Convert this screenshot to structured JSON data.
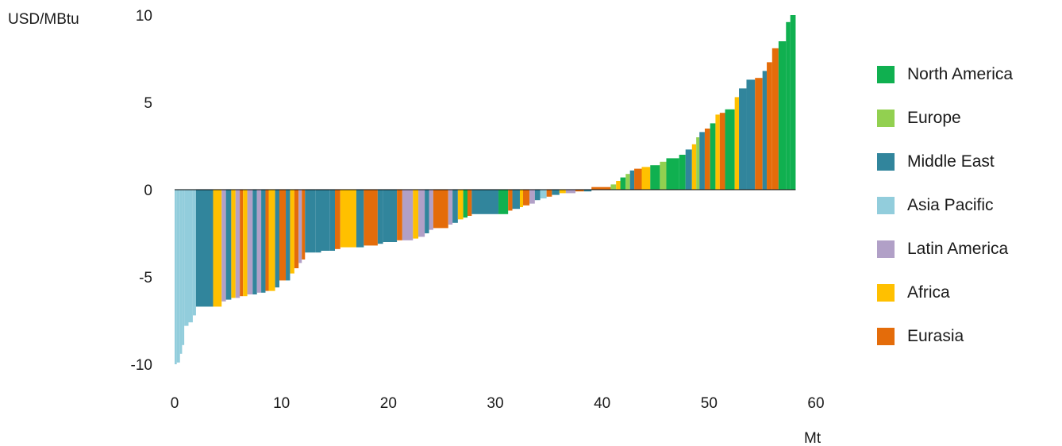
{
  "chart_data": {
    "type": "bar",
    "ylabel": "USD/MBtu",
    "xlabel": "Mt",
    "xlim": [
      0,
      60
    ],
    "ylim": [
      -10,
      10
    ],
    "xticks": [
      "0",
      "10",
      "20",
      "30",
      "40",
      "50",
      "60"
    ],
    "yticks": [
      "10",
      "5",
      "0",
      "-5",
      "-10"
    ],
    "grid": false,
    "legend_position": "right",
    "series": [
      {
        "name": "North America",
        "color": "#10b050"
      },
      {
        "name": "Europe",
        "color": "#92d050"
      },
      {
        "name": "Middle East",
        "color": "#31859c"
      },
      {
        "name": "Asia Pacific",
        "color": "#92cddc"
      },
      {
        "name": "Latin America",
        "color": "#b1a0c7"
      },
      {
        "name": "Africa",
        "color": "#ffc000"
      },
      {
        "name": "Eurasia",
        "color": "#e46c0a"
      }
    ],
    "bars": [
      {
        "x0": 0.0,
        "x1": 0.2,
        "value": -10.0,
        "region": "Asia Pacific"
      },
      {
        "x0": 0.2,
        "x1": 0.5,
        "value": -9.9,
        "region": "Asia Pacific"
      },
      {
        "x0": 0.5,
        "x1": 0.7,
        "value": -9.4,
        "region": "Asia Pacific"
      },
      {
        "x0": 0.7,
        "x1": 0.9,
        "value": -8.9,
        "region": "Asia Pacific"
      },
      {
        "x0": 0.9,
        "x1": 1.3,
        "value": -7.8,
        "region": "Asia Pacific"
      },
      {
        "x0": 1.3,
        "x1": 1.7,
        "value": -7.6,
        "region": "Asia Pacific"
      },
      {
        "x0": 1.7,
        "x1": 2.0,
        "value": -7.2,
        "region": "Asia Pacific"
      },
      {
        "x0": 2.0,
        "x1": 3.6,
        "value": -6.7,
        "region": "Middle East"
      },
      {
        "x0": 3.6,
        "x1": 4.4,
        "value": -6.7,
        "region": "Africa"
      },
      {
        "x0": 4.4,
        "x1": 4.8,
        "value": -6.4,
        "region": "Latin America"
      },
      {
        "x0": 4.8,
        "x1": 5.3,
        "value": -6.3,
        "region": "Middle East"
      },
      {
        "x0": 5.3,
        "x1": 5.7,
        "value": -6.2,
        "region": "Africa"
      },
      {
        "x0": 5.7,
        "x1": 6.1,
        "value": -6.2,
        "region": "Latin America"
      },
      {
        "x0": 6.1,
        "x1": 6.4,
        "value": -6.1,
        "region": "Eurasia"
      },
      {
        "x0": 6.4,
        "x1": 6.8,
        "value": -6.1,
        "region": "Africa"
      },
      {
        "x0": 6.8,
        "x1": 7.3,
        "value": -6.0,
        "region": "Latin America"
      },
      {
        "x0": 7.3,
        "x1": 7.7,
        "value": -6.0,
        "region": "Middle East"
      },
      {
        "x0": 7.7,
        "x1": 8.1,
        "value": -5.9,
        "region": "Latin America"
      },
      {
        "x0": 8.1,
        "x1": 8.5,
        "value": -5.9,
        "region": "Middle East"
      },
      {
        "x0": 8.5,
        "x1": 8.8,
        "value": -5.8,
        "region": "Eurasia"
      },
      {
        "x0": 8.8,
        "x1": 9.4,
        "value": -5.8,
        "region": "Africa"
      },
      {
        "x0": 9.4,
        "x1": 9.8,
        "value": -5.6,
        "region": "Middle East"
      },
      {
        "x0": 9.8,
        "x1": 10.4,
        "value": -5.2,
        "region": "Eurasia"
      },
      {
        "x0": 10.4,
        "x1": 10.8,
        "value": -5.2,
        "region": "Middle East"
      },
      {
        "x0": 10.8,
        "x1": 11.2,
        "value": -4.8,
        "region": "Africa"
      },
      {
        "x0": 11.2,
        "x1": 11.6,
        "value": -4.5,
        "region": "Eurasia"
      },
      {
        "x0": 11.6,
        "x1": 11.9,
        "value": -4.2,
        "region": "Latin America"
      },
      {
        "x0": 11.9,
        "x1": 12.2,
        "value": -4.0,
        "region": "Eurasia"
      },
      {
        "x0": 12.2,
        "x1": 13.2,
        "value": -3.6,
        "region": "Middle East"
      },
      {
        "x0": 13.2,
        "x1": 13.7,
        "value": -3.6,
        "region": "Middle East"
      },
      {
        "x0": 13.7,
        "x1": 14.5,
        "value": -3.5,
        "region": "Middle East"
      },
      {
        "x0": 14.5,
        "x1": 15.0,
        "value": -3.5,
        "region": "Middle East"
      },
      {
        "x0": 15.0,
        "x1": 15.5,
        "value": -3.4,
        "region": "Eurasia"
      },
      {
        "x0": 15.5,
        "x1": 17.0,
        "value": -3.3,
        "region": "Africa"
      },
      {
        "x0": 17.0,
        "x1": 17.7,
        "value": -3.3,
        "region": "Middle East"
      },
      {
        "x0": 17.7,
        "x1": 19.0,
        "value": -3.2,
        "region": "Eurasia"
      },
      {
        "x0": 19.0,
        "x1": 19.5,
        "value": -3.1,
        "region": "Middle East"
      },
      {
        "x0": 19.5,
        "x1": 20.8,
        "value": -3.0,
        "region": "Middle East"
      },
      {
        "x0": 20.8,
        "x1": 21.3,
        "value": -2.9,
        "region": "Eurasia"
      },
      {
        "x0": 21.3,
        "x1": 22.3,
        "value": -2.9,
        "region": "Latin America"
      },
      {
        "x0": 22.3,
        "x1": 22.8,
        "value": -2.8,
        "region": "Africa"
      },
      {
        "x0": 22.8,
        "x1": 23.4,
        "value": -2.7,
        "region": "Latin America"
      },
      {
        "x0": 23.4,
        "x1": 23.8,
        "value": -2.5,
        "region": "Middle East"
      },
      {
        "x0": 23.8,
        "x1": 24.2,
        "value": -2.3,
        "region": "Latin America"
      },
      {
        "x0": 24.2,
        "x1": 25.6,
        "value": -2.2,
        "region": "Eurasia"
      },
      {
        "x0": 25.6,
        "x1": 26.0,
        "value": -2.0,
        "region": "Latin America"
      },
      {
        "x0": 26.0,
        "x1": 26.5,
        "value": -1.9,
        "region": "Middle East"
      },
      {
        "x0": 26.5,
        "x1": 27.0,
        "value": -1.7,
        "region": "Africa"
      },
      {
        "x0": 27.0,
        "x1": 27.4,
        "value": -1.6,
        "region": "North America"
      },
      {
        "x0": 27.4,
        "x1": 27.8,
        "value": -1.5,
        "region": "Eurasia"
      },
      {
        "x0": 27.8,
        "x1": 30.3,
        "value": -1.4,
        "region": "Middle East"
      },
      {
        "x0": 30.3,
        "x1": 31.2,
        "value": -1.4,
        "region": "North America"
      },
      {
        "x0": 31.2,
        "x1": 31.6,
        "value": -1.2,
        "region": "Eurasia"
      },
      {
        "x0": 31.6,
        "x1": 32.3,
        "value": -1.1,
        "region": "Middle East"
      },
      {
        "x0": 32.3,
        "x1": 32.6,
        "value": -1.0,
        "region": "Africa"
      },
      {
        "x0": 32.6,
        "x1": 33.2,
        "value": -0.9,
        "region": "Eurasia"
      },
      {
        "x0": 33.2,
        "x1": 33.7,
        "value": -0.8,
        "region": "Latin America"
      },
      {
        "x0": 33.7,
        "x1": 34.2,
        "value": -0.6,
        "region": "Middle East"
      },
      {
        "x0": 34.2,
        "x1": 34.8,
        "value": -0.5,
        "region": "Asia Pacific"
      },
      {
        "x0": 34.8,
        "x1": 35.3,
        "value": -0.4,
        "region": "Eurasia"
      },
      {
        "x0": 35.3,
        "x1": 36.0,
        "value": -0.3,
        "region": "Middle East"
      },
      {
        "x0": 36.0,
        "x1": 36.6,
        "value": -0.2,
        "region": "Africa"
      },
      {
        "x0": 36.6,
        "x1": 37.5,
        "value": -0.2,
        "region": "Latin America"
      },
      {
        "x0": 37.5,
        "x1": 38.3,
        "value": -0.1,
        "region": "Eurasia"
      },
      {
        "x0": 38.3,
        "x1": 39.0,
        "value": -0.1,
        "region": "Middle East"
      },
      {
        "x0": 39.0,
        "x1": 40.8,
        "value": 0.15,
        "region": "Eurasia"
      },
      {
        "x0": 40.8,
        "x1": 41.3,
        "value": 0.3,
        "region": "Europe"
      },
      {
        "x0": 41.3,
        "x1": 41.7,
        "value": 0.5,
        "region": "Africa"
      },
      {
        "x0": 41.7,
        "x1": 42.2,
        "value": 0.7,
        "region": "North America"
      },
      {
        "x0": 42.2,
        "x1": 42.6,
        "value": 0.9,
        "region": "Europe"
      },
      {
        "x0": 42.6,
        "x1": 43.0,
        "value": 1.1,
        "region": "Middle East"
      },
      {
        "x0": 43.0,
        "x1": 43.7,
        "value": 1.2,
        "region": "Eurasia"
      },
      {
        "x0": 43.7,
        "x1": 44.5,
        "value": 1.3,
        "region": "Africa"
      },
      {
        "x0": 44.5,
        "x1": 45.4,
        "value": 1.4,
        "region": "North America"
      },
      {
        "x0": 45.4,
        "x1": 46.0,
        "value": 1.6,
        "region": "Europe"
      },
      {
        "x0": 46.0,
        "x1": 47.2,
        "value": 1.8,
        "region": "North America"
      },
      {
        "x0": 47.2,
        "x1": 47.8,
        "value": 2.0,
        "region": "North America"
      },
      {
        "x0": 47.8,
        "x1": 48.4,
        "value": 2.3,
        "region": "Middle East"
      },
      {
        "x0": 48.4,
        "x1": 48.8,
        "value": 2.6,
        "region": "Africa"
      },
      {
        "x0": 48.8,
        "x1": 49.1,
        "value": 3.0,
        "region": "Europe"
      },
      {
        "x0": 49.1,
        "x1": 49.6,
        "value": 3.3,
        "region": "Middle East"
      },
      {
        "x0": 49.6,
        "x1": 50.1,
        "value": 3.5,
        "region": "Eurasia"
      },
      {
        "x0": 50.1,
        "x1": 50.6,
        "value": 3.8,
        "region": "North America"
      },
      {
        "x0": 50.6,
        "x1": 51.0,
        "value": 4.3,
        "region": "Africa"
      },
      {
        "x0": 51.0,
        "x1": 51.5,
        "value": 4.4,
        "region": "Eurasia"
      },
      {
        "x0": 51.5,
        "x1": 52.4,
        "value": 4.6,
        "region": "North America"
      },
      {
        "x0": 52.4,
        "x1": 52.8,
        "value": 5.3,
        "region": "Africa"
      },
      {
        "x0": 52.8,
        "x1": 53.5,
        "value": 5.8,
        "region": "Middle East"
      },
      {
        "x0": 53.5,
        "x1": 54.3,
        "value": 6.3,
        "region": "Middle East"
      },
      {
        "x0": 54.3,
        "x1": 55.0,
        "value": 6.4,
        "region": "Eurasia"
      },
      {
        "x0": 55.0,
        "x1": 55.4,
        "value": 6.8,
        "region": "Middle East"
      },
      {
        "x0": 55.4,
        "x1": 55.9,
        "value": 7.3,
        "region": "Eurasia"
      },
      {
        "x0": 55.9,
        "x1": 56.5,
        "value": 8.1,
        "region": "Eurasia"
      },
      {
        "x0": 56.5,
        "x1": 57.2,
        "value": 8.5,
        "region": "North America"
      },
      {
        "x0": 57.2,
        "x1": 57.6,
        "value": 9.6,
        "region": "North America"
      },
      {
        "x0": 57.6,
        "x1": 58.1,
        "value": 10.0,
        "region": "North America"
      }
    ]
  }
}
